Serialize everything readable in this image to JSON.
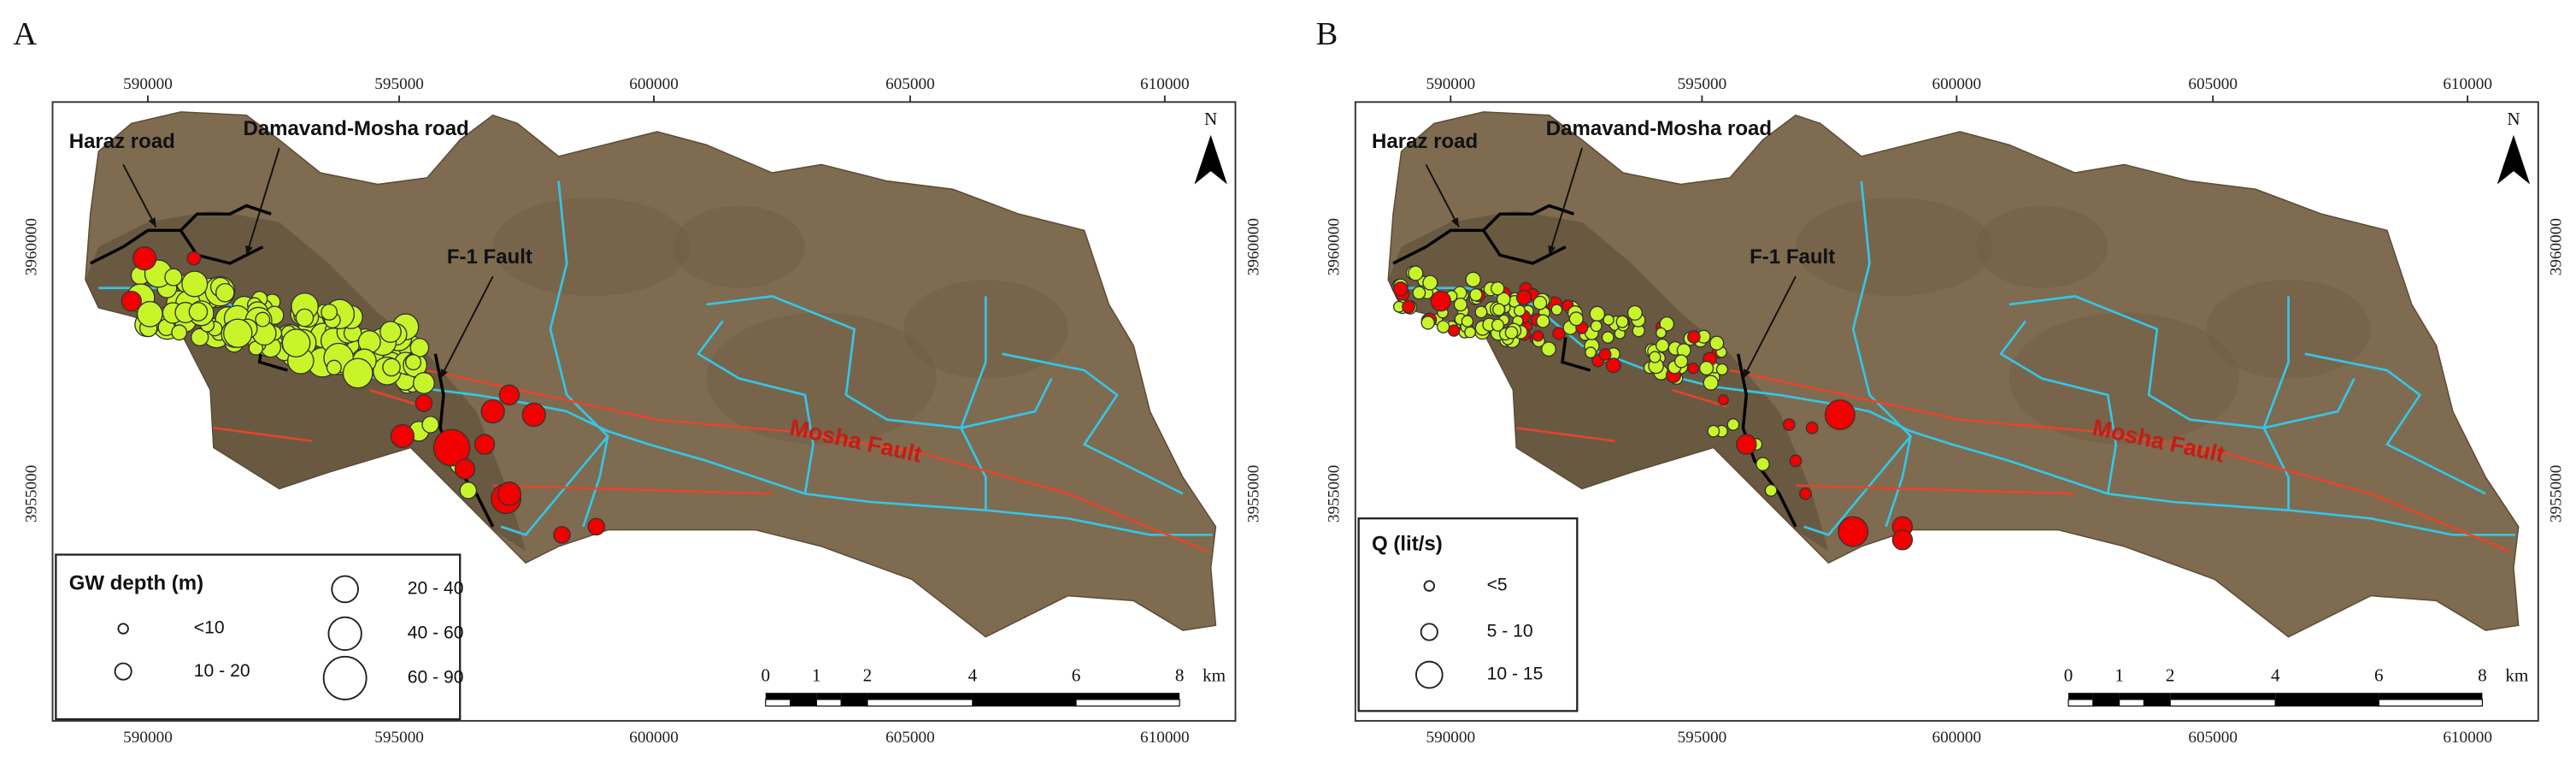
{
  "panels": [
    {
      "label": "A",
      "x_ticks": [
        "590000",
        "595000",
        "600000",
        "605000",
        "610000"
      ],
      "y_ticks": [
        "3960000",
        "3955000"
      ],
      "annotations": {
        "haraz_road": "Haraz road",
        "damavand_mosha_road": "Damavand-Mosha road",
        "f1_fault": "F-1 Fault",
        "mosha_fault": "Mosha Fault"
      },
      "north": "N",
      "legend": {
        "title": "GW depth (m)",
        "items": [
          "<10",
          "10 - 20",
          "20 - 40",
          "40 - 60",
          "60 - 90"
        ]
      },
      "scale_bar": {
        "labels": [
          "0",
          "1",
          "2",
          "4",
          "6",
          "8"
        ],
        "unit": "km"
      }
    },
    {
      "label": "B",
      "x_ticks": [
        "590000",
        "595000",
        "600000",
        "605000",
        "610000"
      ],
      "y_ticks": [
        "3960000",
        "3955000"
      ],
      "annotations": {
        "haraz_road": "Haraz road",
        "damavand_mosha_road": "Damavand-Mosha road",
        "f1_fault": "F-1 Fault",
        "mosha_fault": "Mosha Fault"
      },
      "north": "N",
      "legend": {
        "title": "Q (lit/s)",
        "items": [
          "<5",
          "5 - 10",
          "10 - 15"
        ]
      },
      "scale_bar": {
        "labels": [
          "0",
          "1",
          "2",
          "4",
          "6",
          "8"
        ],
        "unit": "km"
      }
    }
  ]
}
